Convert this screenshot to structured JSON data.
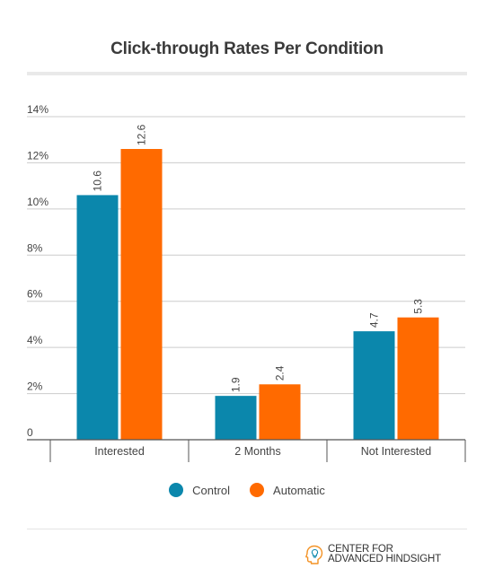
{
  "chart_data": {
    "type": "bar",
    "title": "Click-through Rates Per Condition",
    "categories": [
      "Interested",
      "2 Months",
      "Not Interested"
    ],
    "series": [
      {
        "name": "Control",
        "color": "#0b87ac",
        "values": [
          10.6,
          1.9,
          4.7
        ]
      },
      {
        "name": "Automatic",
        "color": "#ff6a00",
        "values": [
          12.6,
          2.4,
          5.3
        ]
      }
    ],
    "yticks": [
      "0",
      "2%",
      "4%",
      "6%",
      "8%",
      "10%",
      "12%",
      "14%"
    ],
    "ylim": [
      0,
      14
    ],
    "grid": true,
    "legend": "bottom-center"
  },
  "brand": {
    "line1": "CENTER FOR",
    "line2": "ADVANCED HINDSIGHT",
    "icon": "head-lightbulb-icon"
  },
  "colors": {
    "grid": "#cccccc",
    "axis": "#555555"
  }
}
